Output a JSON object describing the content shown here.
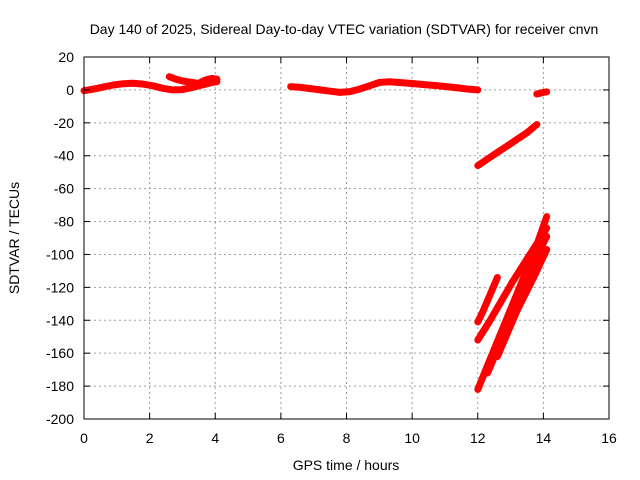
{
  "chart_data": {
    "type": "scatter",
    "title": "Day 140 of 2025, Sidereal Day-to-day VTEC variation (SDTVAR) for receiver cnvn",
    "xlabel": "GPS time / hours",
    "ylabel": "SDTVAR / TECUs",
    "xlim": [
      0,
      16
    ],
    "ylim": [
      -200,
      20
    ],
    "xticks": [
      0,
      2,
      4,
      6,
      8,
      10,
      12,
      14,
      16
    ],
    "yticks": [
      -200,
      -180,
      -160,
      -140,
      -120,
      -100,
      -80,
      -60,
      -40,
      -20,
      0,
      20
    ],
    "grid": true,
    "legend": "none",
    "color": "#ff0000",
    "series": [
      {
        "x": [
          0.0,
          0.3,
          0.6,
          0.9,
          1.2,
          1.5,
          1.8,
          2.1,
          2.4,
          2.7,
          3.0,
          3.3,
          3.6,
          3.9,
          4.05
        ],
        "y": [
          -0.5,
          0.5,
          1.8,
          3.0,
          3.8,
          4.0,
          3.5,
          2.5,
          1.0,
          0.0,
          0.2,
          1.5,
          3.0,
          4.5,
          5.0
        ]
      },
      {
        "x": [
          2.6,
          2.8,
          3.0,
          3.2,
          3.4,
          3.6
        ],
        "y": [
          8.0,
          6.5,
          5.5,
          4.8,
          4.2,
          3.5
        ]
      },
      {
        "x": [
          3.5,
          3.7,
          3.9,
          4.05
        ],
        "y": [
          4.0,
          6.0,
          7.0,
          6.5
        ]
      },
      {
        "x": [
          6.3,
          6.6,
          6.9,
          7.2,
          7.5,
          7.8,
          8.1,
          8.4,
          8.7,
          9.0,
          9.3,
          9.6,
          9.9,
          10.2,
          10.5,
          10.8,
          11.1,
          11.4,
          11.7,
          12.0
        ],
        "y": [
          2.0,
          1.5,
          0.8,
          0.0,
          -0.8,
          -1.5,
          -1.0,
          0.5,
          2.5,
          4.5,
          5.0,
          4.5,
          4.0,
          3.5,
          3.0,
          2.5,
          1.8,
          1.2,
          0.5,
          0.0
        ]
      },
      {
        "x": [
          13.8,
          13.9,
          14.0,
          14.1
        ],
        "y": [
          -2.5,
          -2.0,
          -1.5,
          -1.2
        ]
      },
      {
        "x": [
          12.0,
          12.3,
          12.6,
          12.9,
          13.2,
          13.5,
          13.8
        ],
        "y": [
          -46,
          -42,
          -38,
          -34,
          -30,
          -26,
          -21
        ]
      },
      {
        "x": [
          12.0,
          12.15,
          12.3,
          12.45,
          12.6
        ],
        "y": [
          -141,
          -135,
          -128,
          -121,
          -114
        ]
      },
      {
        "x": [
          12.0,
          12.35,
          12.7,
          13.05,
          13.4,
          13.75,
          14.1
        ],
        "y": [
          -152,
          -141,
          -129,
          -117,
          -106,
          -95,
          -84
        ]
      },
      {
        "x": [
          12.0,
          12.35,
          12.7,
          13.05,
          13.4,
          13.75,
          14.1
        ],
        "y": [
          -182,
          -165,
          -148,
          -131,
          -114,
          -97,
          -77
        ]
      },
      {
        "x": [
          12.3,
          12.6,
          12.9,
          13.2,
          13.5,
          13.8,
          14.1
        ],
        "y": [
          -172,
          -158,
          -143,
          -129,
          -115,
          -101,
          -89
        ]
      },
      {
        "x": [
          12.6,
          12.9,
          13.2,
          13.5,
          13.8,
          14.1
        ],
        "y": [
          -162,
          -148,
          -134,
          -122,
          -110,
          -97
        ]
      }
    ]
  }
}
